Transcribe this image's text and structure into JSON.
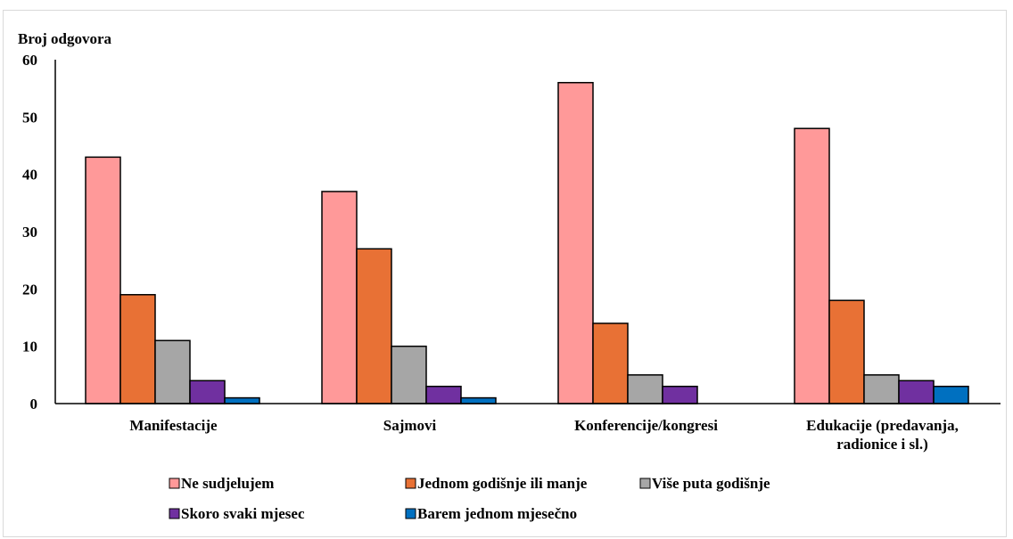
{
  "chart_data": {
    "type": "bar",
    "ylabel": "Broj odgovora",
    "ylim": [
      0,
      60
    ],
    "yticks": [
      0,
      10,
      20,
      30,
      40,
      50,
      60
    ],
    "grid": false,
    "legend_position": "bottom",
    "categories": [
      [
        "Manifestacije"
      ],
      [
        "Sajmovi"
      ],
      [
        "Konferencije/kongresi"
      ],
      [
        "Edukacije (predavanja,",
        "radionice i sl.)"
      ]
    ],
    "series": [
      {
        "name": "Ne sudjelujem",
        "color": "#ff9999",
        "values": [
          43,
          37,
          56,
          48
        ]
      },
      {
        "name": "Jednom godišnje ili manje",
        "color": "#e87135",
        "values": [
          19,
          27,
          14,
          18
        ]
      },
      {
        "name": "Više puta godišnje",
        "color": "#a6a6a6",
        "values": [
          11,
          10,
          5,
          5
        ]
      },
      {
        "name": "Skoro svaki mjesec",
        "color": "#7030a0",
        "values": [
          4,
          3,
          3,
          4
        ]
      },
      {
        "name": "Barem jednom mjesečno",
        "color": "#0070c0",
        "values": [
          1,
          1,
          0,
          3
        ]
      }
    ]
  }
}
